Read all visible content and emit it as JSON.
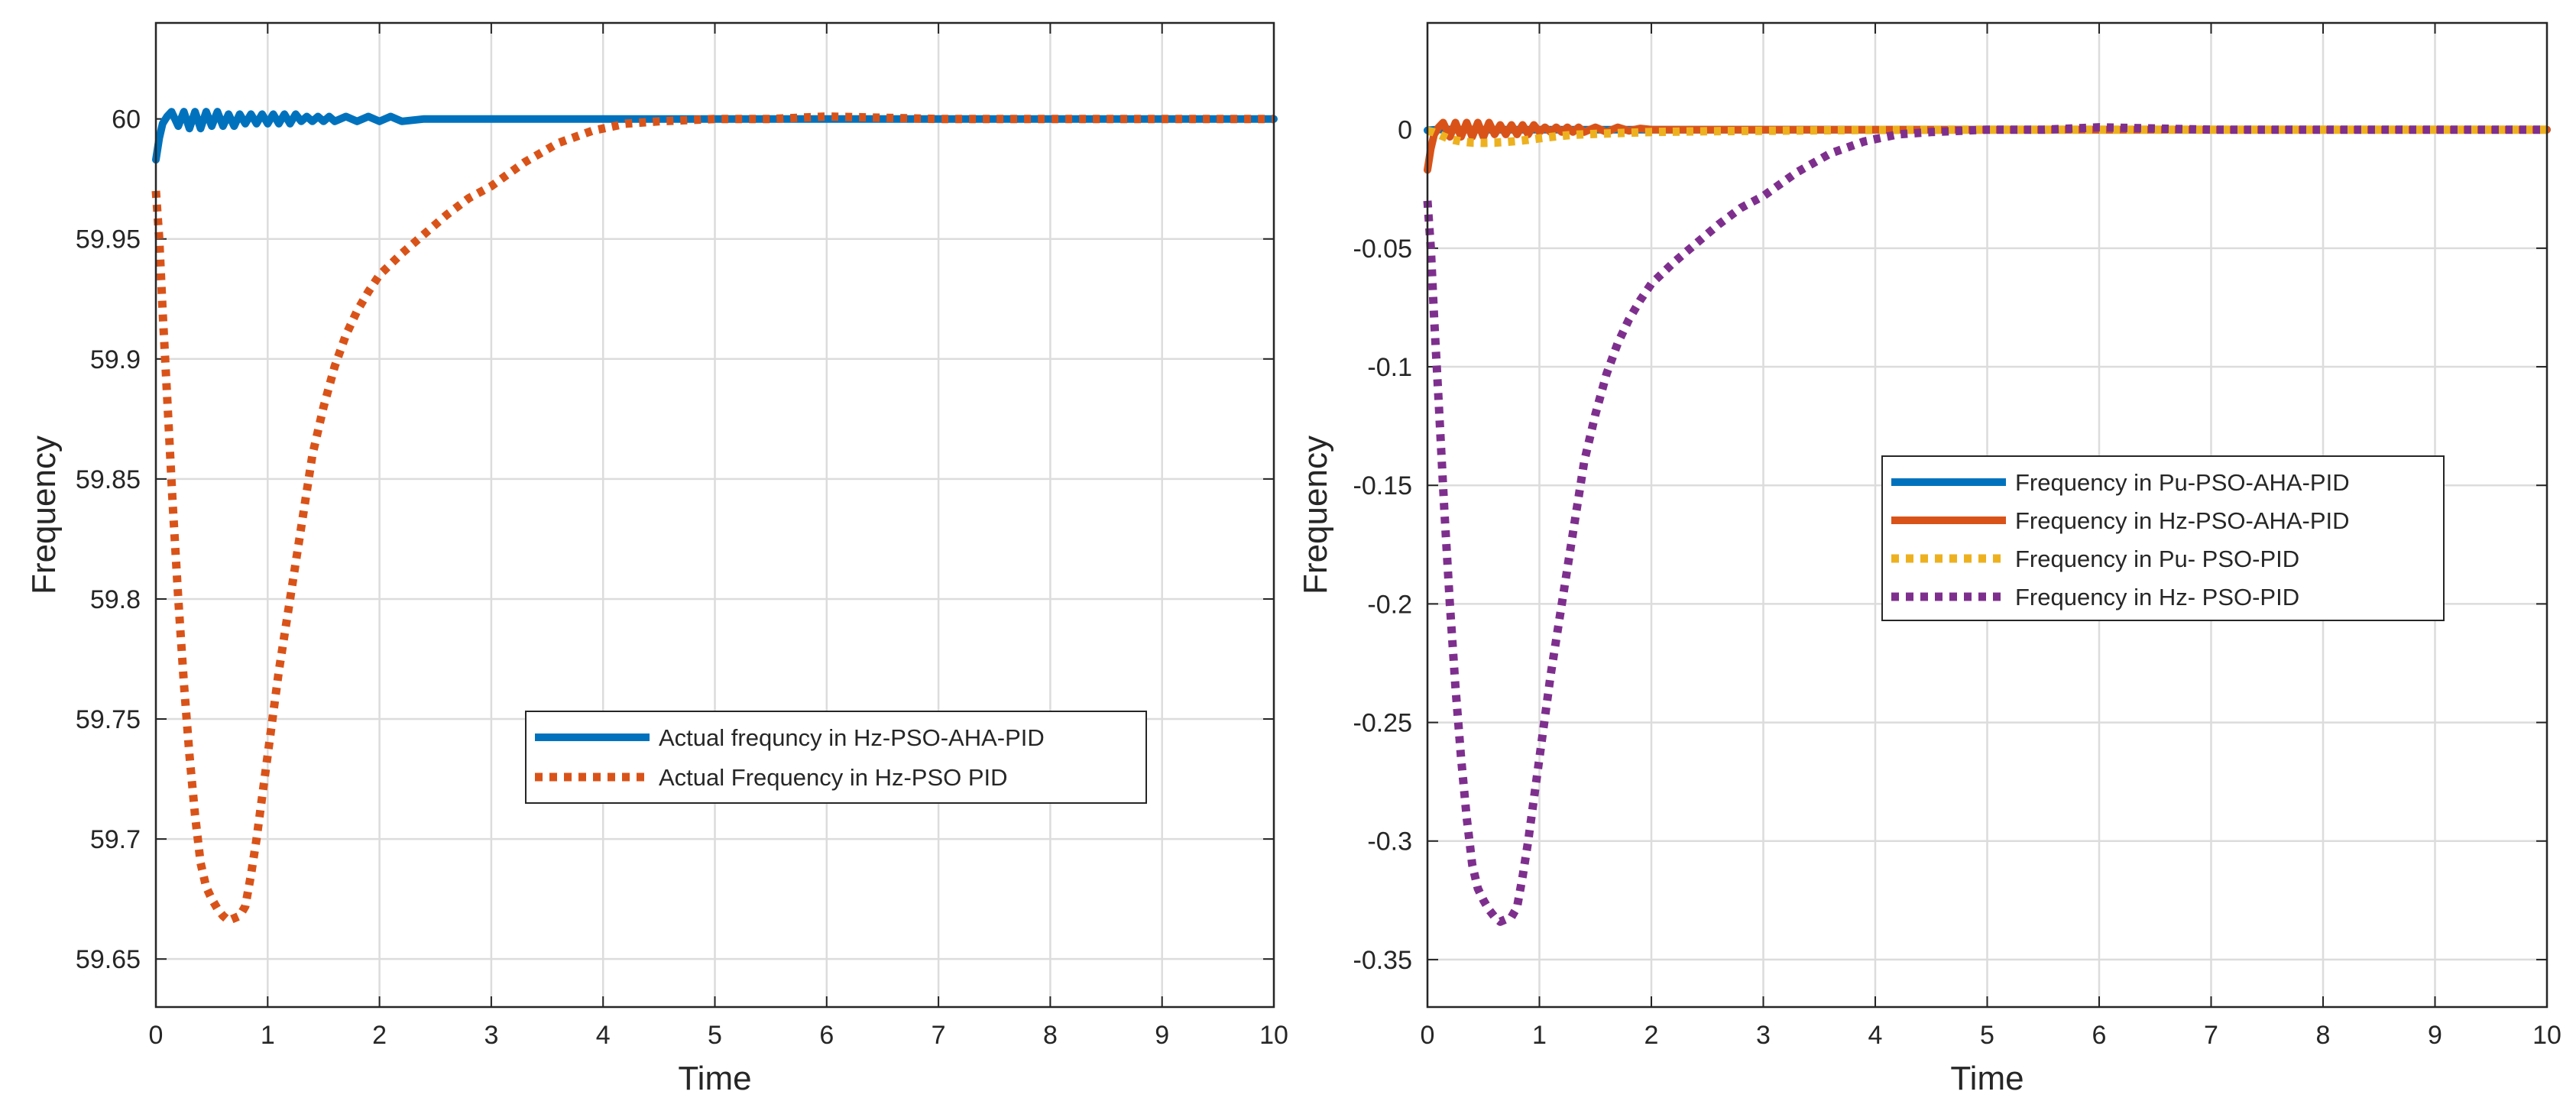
{
  "chart_data": [
    {
      "type": "line",
      "title": "",
      "xlabel": "Time",
      "ylabel": "Frequency",
      "xlim": [
        0,
        10
      ],
      "ylim": [
        59.63,
        60.04
      ],
      "xticks": [
        0,
        1,
        2,
        3,
        4,
        5,
        6,
        7,
        8,
        9,
        10
      ],
      "xtick_labels": [
        "0",
        "1",
        "2",
        "3",
        "4",
        "5",
        "6",
        "7",
        "8",
        "9",
        "10"
      ],
      "yticks": [
        59.65,
        59.7,
        59.75,
        59.8,
        59.85,
        59.9,
        59.95,
        60
      ],
      "ytick_labels": [
        "59.65",
        "59.7",
        "59.75",
        "59.8",
        "59.85",
        "59.9",
        "59.95",
        "60"
      ],
      "grid": true,
      "legend_position": "center-right",
      "series": [
        {
          "name": "Actual frequncy in Hz-PSO-AHA-PID",
          "color": "#0072BD",
          "style": "solid",
          "x": [
            0,
            0.03,
            0.06,
            0.1,
            0.14,
            0.2,
            0.25,
            0.3,
            0.35,
            0.4,
            0.45,
            0.5,
            0.55,
            0.6,
            0.65,
            0.7,
            0.75,
            0.8,
            0.85,
            0.9,
            0.95,
            1.0,
            1.05,
            1.1,
            1.15,
            1.2,
            1.25,
            1.3,
            1.35,
            1.4,
            1.45,
            1.5,
            1.55,
            1.6,
            1.7,
            1.8,
            1.9,
            2.0,
            2.1,
            2.2,
            2.4,
            2.6,
            2.8,
            3.0,
            3.5,
            4.0,
            5.0,
            6.0,
            7.0,
            8.0,
            9.0,
            10.0
          ],
          "y": [
            59.983,
            59.992,
            59.998,
            60.001,
            60.003,
            59.997,
            60.003,
            59.996,
            60.003,
            59.996,
            60.003,
            59.997,
            60.003,
            59.997,
            60.002,
            59.997,
            60.002,
            59.998,
            60.002,
            59.998,
            60.002,
            59.998,
            60.002,
            59.998,
            60.002,
            59.998,
            60.002,
            59.999,
            60.001,
            59.999,
            60.001,
            59.999,
            60.001,
            59.999,
            60.001,
            59.999,
            60.001,
            59.999,
            60.001,
            59.999,
            60.0,
            60.0,
            60.0,
            60.0,
            60.0,
            60.0,
            60.0,
            60.0,
            60.0,
            60.0,
            60.0,
            60.0
          ]
        },
        {
          "name": "Actual Frequency in Hz-PSO PID",
          "color": "#D95319",
          "style": "dotted",
          "x": [
            0,
            0.03,
            0.06,
            0.1,
            0.15,
            0.2,
            0.25,
            0.3,
            0.35,
            0.4,
            0.45,
            0.5,
            0.55,
            0.6,
            0.65,
            0.7,
            0.75,
            0.8,
            0.85,
            0.9,
            1.0,
            1.1,
            1.2,
            1.3,
            1.4,
            1.5,
            1.6,
            1.7,
            1.8,
            1.9,
            2.0,
            2.2,
            2.4,
            2.6,
            2.8,
            3.0,
            3.3,
            3.6,
            3.9,
            4.2,
            4.5,
            5.0,
            5.5,
            6.0,
            7.0,
            8.0,
            9.0,
            10.0
          ],
          "y": [
            59.97,
            59.95,
            59.92,
            59.885,
            59.84,
            59.8,
            59.765,
            59.735,
            59.71,
            59.69,
            59.68,
            59.675,
            59.671,
            59.668,
            59.666,
            59.667,
            59.668,
            59.672,
            59.685,
            59.7,
            59.735,
            59.77,
            59.8,
            59.83,
            59.86,
            59.88,
            59.897,
            59.91,
            59.92,
            59.928,
            59.935,
            59.944,
            59.952,
            59.96,
            59.967,
            59.972,
            59.982,
            59.99,
            59.995,
            59.998,
            59.999,
            60.0,
            60.0,
            60.001,
            60.0,
            60.0,
            60.0,
            60.0
          ]
        }
      ]
    },
    {
      "type": "line",
      "title": "",
      "xlabel": "Time",
      "ylabel": "Frequency",
      "xlim": [
        0,
        10
      ],
      "ylim": [
        -0.37,
        0.045
      ],
      "xticks": [
        0,
        1,
        2,
        3,
        4,
        5,
        6,
        7,
        8,
        9,
        10
      ],
      "xtick_labels": [
        "0",
        "1",
        "2",
        "3",
        "4",
        "5",
        "6",
        "7",
        "8",
        "9",
        "10"
      ],
      "yticks": [
        -0.35,
        -0.3,
        -0.25,
        -0.2,
        -0.15,
        -0.1,
        -0.05,
        0
      ],
      "ytick_labels": [
        "-0.35",
        "-0.3",
        "-0.25",
        "-0.2",
        "-0.15",
        "-0.1",
        "-0.05",
        "0"
      ],
      "grid": true,
      "legend_position": "center-right",
      "series": [
        {
          "name": "Frequency in Pu-PSO-AHA-PID",
          "color": "#0072BD",
          "style": "solid",
          "x": [
            0,
            0.05,
            0.1,
            0.15,
            0.2,
            0.3,
            0.4,
            0.5,
            0.6,
            0.8,
            1.0,
            1.5,
            2.0,
            3.0,
            5.0,
            10.0
          ],
          "y": [
            -0.0003,
            -0.0001,
            0.0001,
            0.0,
            5e-05,
            0.0,
            5e-05,
            0.0,
            0.0,
            0.0,
            0.0,
            0.0,
            0.0,
            0.0,
            0.0,
            0.0
          ]
        },
        {
          "name": "Frequency in Hz-PSO-AHA-PID",
          "color": "#D95319",
          "style": "solid",
          "x": [
            0,
            0.03,
            0.06,
            0.1,
            0.14,
            0.2,
            0.25,
            0.3,
            0.35,
            0.4,
            0.45,
            0.5,
            0.55,
            0.6,
            0.65,
            0.7,
            0.75,
            0.8,
            0.85,
            0.9,
            0.95,
            1.0,
            1.05,
            1.1,
            1.15,
            1.2,
            1.25,
            1.3,
            1.35,
            1.4,
            1.5,
            1.6,
            1.7,
            1.8,
            1.9,
            2.0,
            2.2,
            2.5,
            3.0,
            4.0,
            5.0,
            6.0,
            7.0,
            8.0,
            9.0,
            10.0
          ],
          "y": [
            -0.017,
            -0.008,
            -0.002,
            0.001,
            0.003,
            -0.003,
            0.003,
            -0.003,
            0.003,
            -0.003,
            0.003,
            -0.003,
            0.003,
            -0.002,
            0.002,
            -0.002,
            0.002,
            -0.002,
            0.002,
            -0.002,
            0.002,
            -0.001,
            0.001,
            -0.001,
            0.001,
            -0.001,
            0.001,
            -0.001,
            0.001,
            -0.001,
            0.001,
            -0.001,
            0.001,
            -0.0005,
            0.0005,
            0.0,
            0.0,
            0.0,
            0.0,
            0.0,
            0.0,
            0.0,
            0.0,
            0.0,
            0.0,
            0.0
          ]
        },
        {
          "name": "Frequency in Pu- PSO-PID",
          "color": "#EDB120",
          "style": "dotted",
          "x": [
            0,
            0.05,
            0.1,
            0.15,
            0.2,
            0.3,
            0.4,
            0.5,
            0.6,
            0.7,
            0.8,
            0.9,
            1.0,
            1.1,
            1.2,
            1.3,
            1.5,
            1.8,
            2.0,
            2.5,
            3.0,
            4.0,
            5.0,
            6.0,
            7.0,
            8.0,
            9.0,
            10.0
          ],
          "y": [
            -0.0005,
            -0.001,
            -0.002,
            -0.003,
            -0.004,
            -0.005,
            -0.0055,
            -0.0056,
            -0.0055,
            -0.0052,
            -0.0048,
            -0.0043,
            -0.0037,
            -0.0031,
            -0.0026,
            -0.0022,
            -0.0018,
            -0.0013,
            -0.001,
            -0.0007,
            -0.0005,
            -0.0001,
            0.0,
            0.0,
            0.0,
            0.0,
            0.0,
            0.0
          ]
        },
        {
          "name": "Frequency in Hz- PSO-PID",
          "color": "#7E2F8E",
          "style": "dotted",
          "x": [
            0,
            0.03,
            0.06,
            0.1,
            0.15,
            0.2,
            0.25,
            0.3,
            0.35,
            0.4,
            0.45,
            0.5,
            0.55,
            0.6,
            0.65,
            0.7,
            0.75,
            0.8,
            0.85,
            0.9,
            1.0,
            1.1,
            1.2,
            1.3,
            1.4,
            1.5,
            1.6,
            1.7,
            1.8,
            1.9,
            2.0,
            2.2,
            2.4,
            2.6,
            2.8,
            3.0,
            3.3,
            3.6,
            3.9,
            4.2,
            4.5,
            5.0,
            5.5,
            6.0,
            7.0,
            8.0,
            9.0,
            10.0
          ],
          "y": [
            -0.03,
            -0.05,
            -0.08,
            -0.115,
            -0.16,
            -0.2,
            -0.235,
            -0.265,
            -0.29,
            -0.31,
            -0.32,
            -0.325,
            -0.329,
            -0.332,
            -0.334,
            -0.333,
            -0.332,
            -0.328,
            -0.315,
            -0.3,
            -0.265,
            -0.23,
            -0.2,
            -0.17,
            -0.14,
            -0.12,
            -0.103,
            -0.09,
            -0.08,
            -0.072,
            -0.065,
            -0.056,
            -0.048,
            -0.04,
            -0.033,
            -0.028,
            -0.018,
            -0.01,
            -0.005,
            -0.002,
            -0.001,
            0.0,
            0.0,
            0.001,
            0.0,
            0.0,
            0.0,
            0.0
          ]
        }
      ]
    }
  ]
}
